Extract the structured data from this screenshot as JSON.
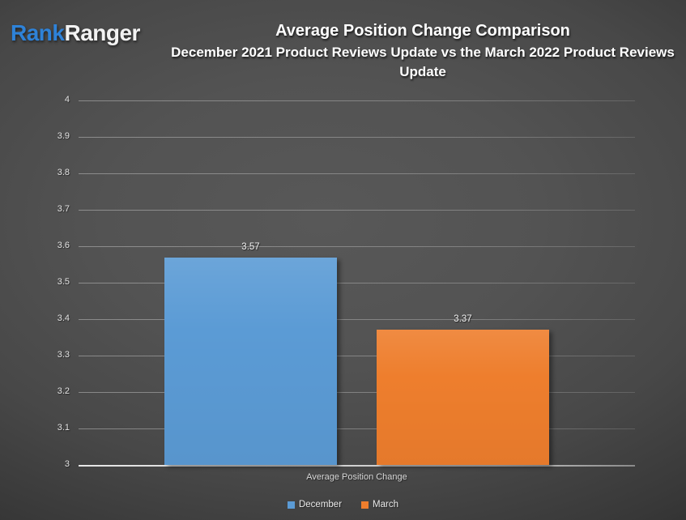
{
  "logo": {
    "text_blue": "Rank",
    "text_white": "Ranger"
  },
  "header": {
    "title": "Average Position Change Comparison",
    "subtitle": "December 2021 Product Reviews Update vs the March 2022 Product Reviews Update"
  },
  "chart_data": {
    "type": "bar",
    "title": "Average Position Change Comparison",
    "subtitle": "December 2021 Product Reviews Update vs the March 2022 Product Reviews Update",
    "categories": [
      "Average Position Change"
    ],
    "series": [
      {
        "name": "December",
        "values": [
          3.57
        ],
        "color": "#5b9bd5"
      },
      {
        "name": "March",
        "values": [
          3.37
        ],
        "color": "#ee7e2d"
      }
    ],
    "value_labels": [
      "3.57",
      "3.37"
    ],
    "xlabel": "Average Position Change",
    "ylim": [
      3,
      4
    ],
    "yticks": [
      4,
      3.9,
      3.8,
      3.7,
      3.6,
      3.5,
      3.4,
      3.3,
      3.2,
      3.1,
      3
    ],
    "ytick_labels": [
      "4",
      "3.9",
      "3.8",
      "3.7",
      "3.6",
      "3.5",
      "3.4",
      "3.3",
      "3.2",
      "3.1",
      "3"
    ],
    "grid": true,
    "legend_position": "bottom"
  },
  "colors": {
    "logo_blue": "#2e82d8",
    "december_bar": "#5b9bd5",
    "march_bar": "#ee7e2d",
    "background_center": "#555555",
    "background_edge": "#1c1c1c"
  }
}
